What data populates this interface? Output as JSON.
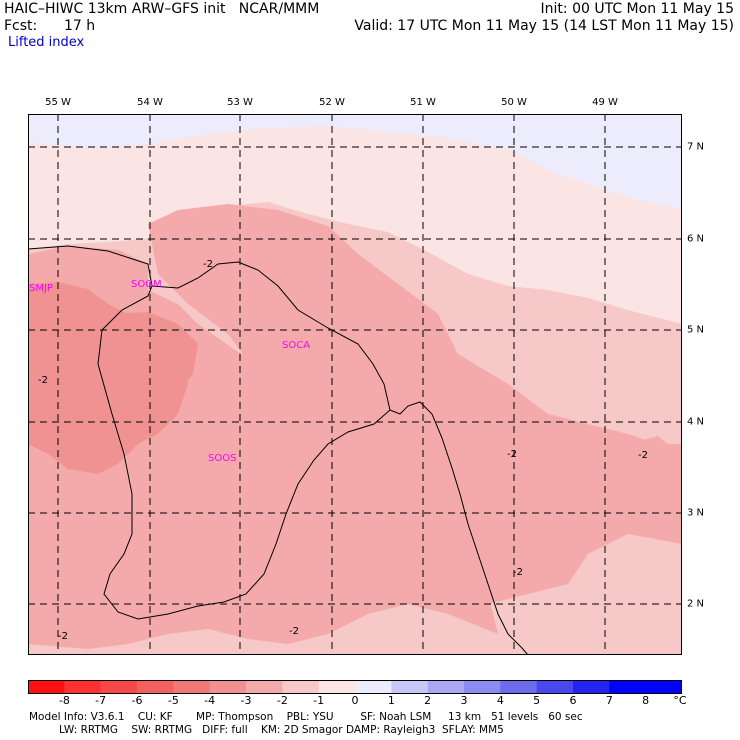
{
  "header": {
    "title_left": "HAIC–HIWC 13km ARW–GFS init   NCAR/MMM",
    "fcst_label": "Fcst:",
    "fcst_value": "17 h",
    "init": "Init: 00 UTC Mon 11 May 15",
    "valid": "Valid: 17 UTC Mon 11 May 15 (14 LST Mon 11 May 15)",
    "field": "Lifted index"
  },
  "map": {
    "lon_labels": [
      "55 W",
      "54 W",
      "53 W",
      "52 W",
      "51 W",
      "50 W",
      "49 W"
    ],
    "lat_labels": [
      "7 N",
      "6 N",
      "5 N",
      "4 N",
      "3 N",
      "2 N"
    ],
    "stations": [
      {
        "id": "SMJP",
        "name": "SMJP"
      },
      {
        "id": "SOGM",
        "name": "SOGM"
      },
      {
        "id": "SOCA",
        "name": "SOCA"
      },
      {
        "id": "SOOS",
        "name": "SOOS"
      }
    ],
    "contour_label": "-2",
    "colors": {
      "ocean_pale": "#fbe4e4",
      "level_m1": "#f7c8c8",
      "level_m2": "#f4aaaa",
      "level_m3": "#f09292",
      "level_p0": "#ececfc",
      "frame": "#000000"
    }
  },
  "colorbar": {
    "unit": "°C",
    "ticks": [
      "-8",
      "-7",
      "-6",
      "-5",
      "-4",
      "-3",
      "-2",
      "-1",
      "0",
      "1",
      "2",
      "3",
      "4",
      "5",
      "6",
      "7",
      "8"
    ],
    "colors": [
      "#ff1010",
      "#ff3030",
      "#f84848",
      "#f46060",
      "#f07878",
      "#f09090",
      "#f4aaaa",
      "#f7c8c8",
      "#fbe4e4",
      "#ececfc",
      "#c8c8f8",
      "#a8a8f4",
      "#8c8cf0",
      "#6c6cec",
      "#4848ec",
      "#2424f0",
      "#0000ff"
    ]
  },
  "footer": {
    "line1": "Model Info: V3.6.1    CU: KF       MP: Thompson    PBL: YSU        SF: Noah LSM     13 km   51 levels   60 sec",
    "line2": "         LW: RRTMG    SW: RRTMG   DIFF: full    KM: 2D Smagor DAMP: Rayleigh3  SFLAY: MM5"
  }
}
